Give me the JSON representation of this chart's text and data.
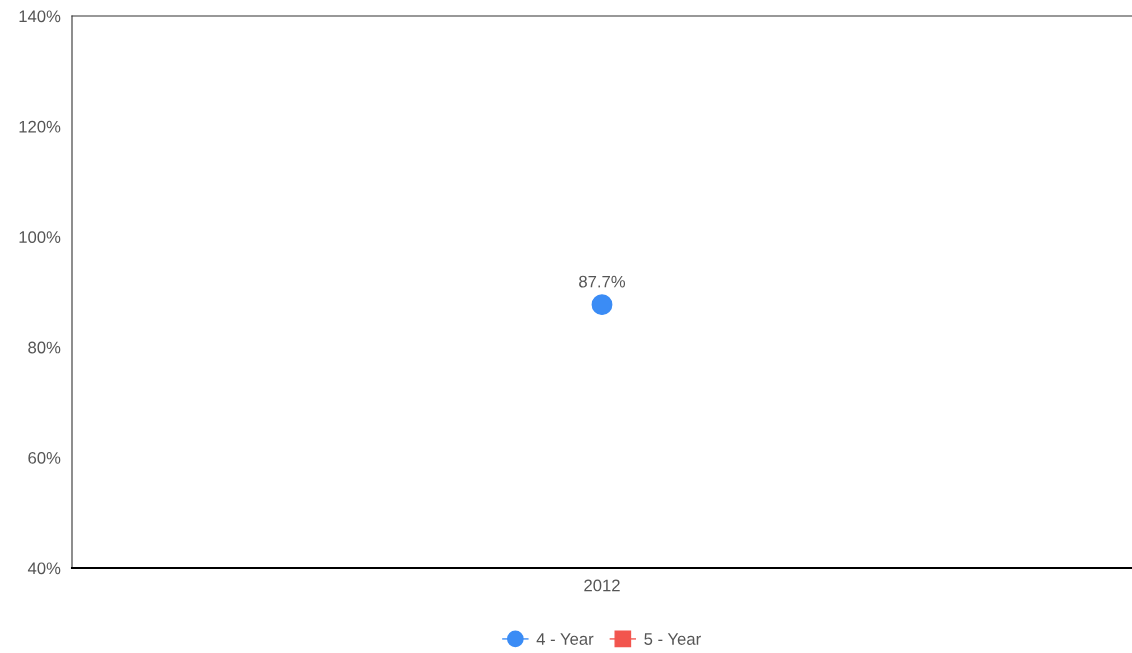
{
  "chart_data": {
    "type": "line",
    "categories": [
      "2012"
    ],
    "series": [
      {
        "name": "4 - Year",
        "color": "#3b8cf5",
        "values": [
          87.7
        ],
        "marker": "circle",
        "value_labels": [
          "87.7%"
        ]
      },
      {
        "name": "5 - Year",
        "color": "#f2554e",
        "values": [
          null
        ],
        "marker": "square"
      }
    ],
    "ylim": [
      40,
      140
    ],
    "yticks": [
      {
        "value": 40,
        "label": "40%"
      },
      {
        "value": 60,
        "label": "60%"
      },
      {
        "value": 80,
        "label": "80%"
      },
      {
        "value": 100,
        "label": "100%"
      },
      {
        "value": 120,
        "label": "120%"
      },
      {
        "value": 140,
        "label": "140%"
      }
    ],
    "grid": false,
    "legend": "bottom"
  }
}
